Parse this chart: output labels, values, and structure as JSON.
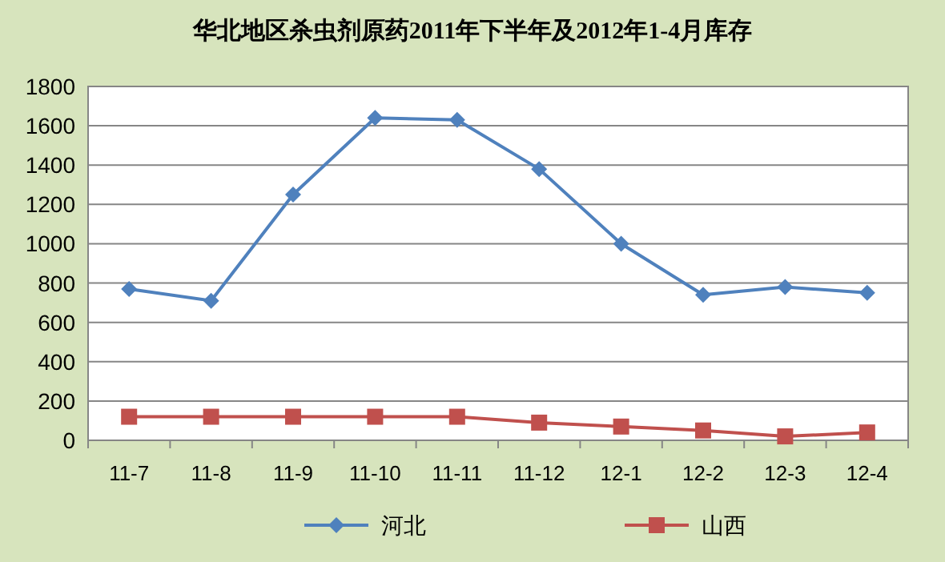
{
  "chart_data": {
    "type": "line",
    "title": "华北地区杀虫剂原药2011年下半年及2012年1-4月库存",
    "categories": [
      "11-7",
      "11-8",
      "11-9",
      "11-10",
      "11-11",
      "11-12",
      "12-1",
      "12-2",
      "12-3",
      "12-4"
    ],
    "series": [
      {
        "name": "河北",
        "color": "#4f81bd",
        "marker": "diamond",
        "values": [
          770,
          710,
          1250,
          1640,
          1630,
          1380,
          1000,
          740,
          780,
          750
        ]
      },
      {
        "name": "山西",
        "color": "#c0504d",
        "marker": "square",
        "values": [
          120,
          120,
          120,
          120,
          120,
          90,
          70,
          50,
          20,
          40
        ]
      }
    ],
    "ylim": [
      0,
      1800
    ],
    "yticks": [
      0,
      200,
      400,
      600,
      800,
      1000,
      1200,
      1400,
      1600,
      1800
    ],
    "grid": "y",
    "legend": "bottom"
  }
}
